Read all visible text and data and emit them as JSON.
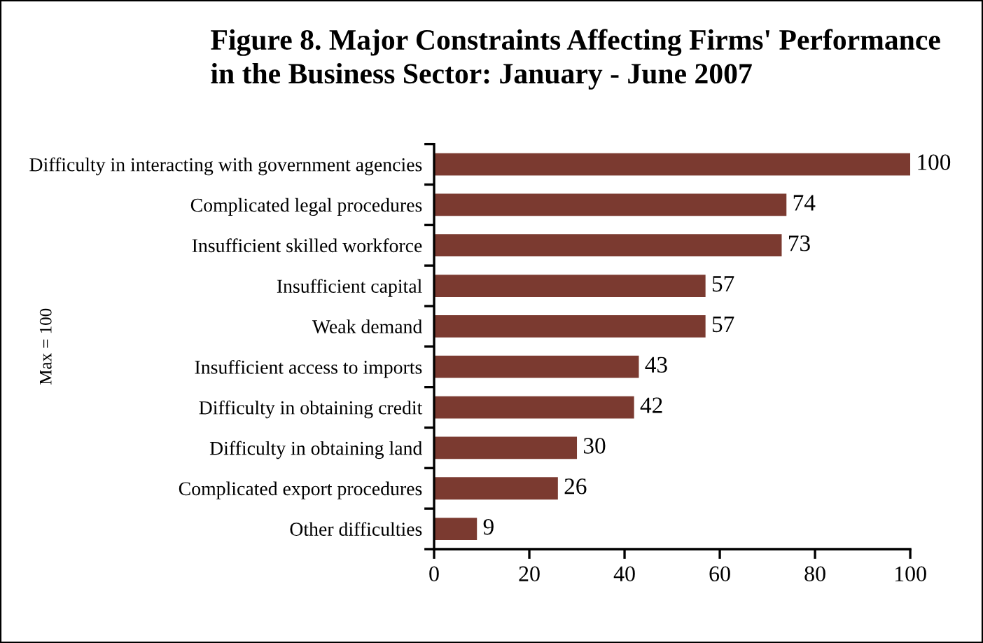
{
  "chart_data": {
    "type": "bar",
    "orientation": "horizontal",
    "title": "Figure 8. Major Constraints Affecting Firms' Performance\nin the Business Sector: January - June 2007",
    "ylabel": "Max = 100",
    "categories": [
      "Difficulty in interacting with government agencies",
      "Complicated legal procedures",
      "Insufficient skilled workforce",
      "Insufficient capital",
      "Weak demand",
      "Insufficient access to imports",
      "Difficulty in obtaining credit",
      "Difficulty in obtaining land",
      "Complicated export procedures",
      "Other difficulties"
    ],
    "values": [
      100,
      74,
      73,
      57,
      57,
      43,
      42,
      30,
      26,
      9
    ],
    "color": "#7b3a30",
    "xlim": [
      0,
      100
    ],
    "xticks": [
      0,
      20,
      40,
      60,
      80,
      100
    ],
    "data_labels": true,
    "grid": false,
    "legend": false
  }
}
